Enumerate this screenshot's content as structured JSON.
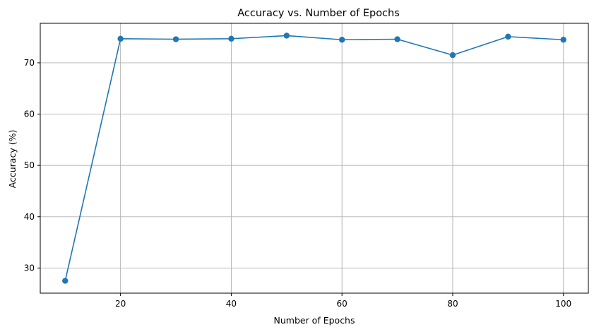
{
  "chart_data": {
    "type": "line",
    "title": "Accuracy vs. Number of Epochs",
    "xlabel": "Number of Epochs",
    "ylabel": "Accuracy (%)",
    "x": [
      10,
      20,
      30,
      40,
      50,
      60,
      70,
      80,
      90,
      100
    ],
    "series": [
      {
        "values": [
          27.5,
          74.7,
          74.6,
          74.7,
          75.3,
          74.5,
          74.6,
          71.5,
          75.1,
          74.5
        ]
      }
    ],
    "xlim": [
      5.5,
      104.5
    ],
    "ylim": [
      25.1,
      77.7
    ],
    "xticks": [
      20,
      40,
      60,
      80,
      100
    ],
    "yticks": [
      30,
      40,
      50,
      60,
      70
    ],
    "grid": true,
    "marker": "circle",
    "line_color": "#1f77b4"
  }
}
